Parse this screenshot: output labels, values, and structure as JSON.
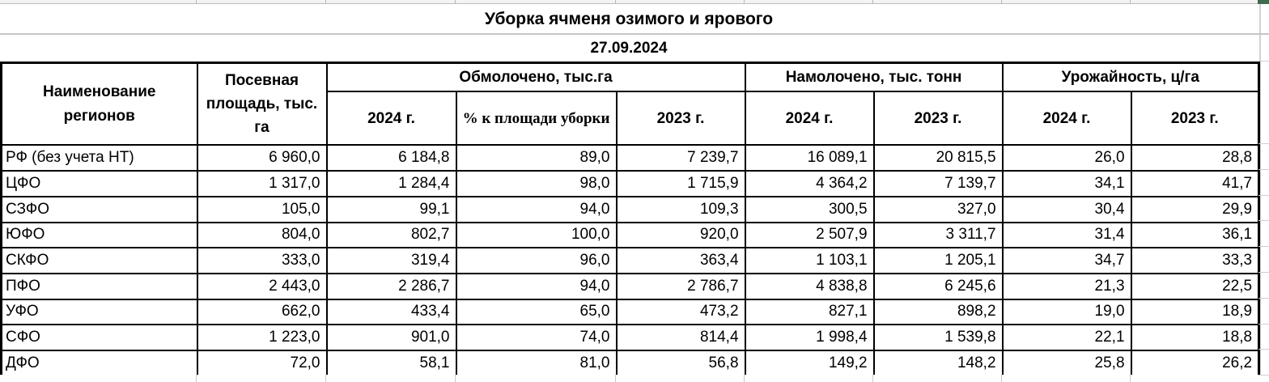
{
  "title": "Уборка ячменя озимого и ярового",
  "date": "27.09.2024",
  "table": {
    "headers": {
      "region": "Наименование регионов",
      "sown_area": "Посевная площадь, тыс. га",
      "threshed_group": "Обмолочено, тыс.га",
      "threshed_2024": "2024 г.",
      "threshed_pct": "% к площади уборки",
      "threshed_2023": "2023 г.",
      "harvested_group": "Намолочено, тыс. тонн",
      "harvested_2024": "2024 г.",
      "harvested_2023": "2023 г.",
      "yield_group": "Урожайность, ц/га",
      "yield_2024": "2024 г.",
      "yield_2023": "2023 г."
    },
    "rows": [
      {
        "region": "РФ (без учета НТ)",
        "values": [
          "6 960,0",
          "6 184,8",
          "89,0",
          "7 239,7",
          "16 089,1",
          "20 815,5",
          "26,0",
          "28,8"
        ]
      },
      {
        "region": "ЦФО",
        "values": [
          "1 317,0",
          "1 284,4",
          "98,0",
          "1 715,9",
          "4 364,2",
          "7 139,7",
          "34,1",
          "41,7"
        ]
      },
      {
        "region": "СЗФО",
        "values": [
          "105,0",
          "99,1",
          "94,0",
          "109,3",
          "300,5",
          "327,0",
          "30,4",
          "29,9"
        ]
      },
      {
        "region": "ЮФО",
        "values": [
          "804,0",
          "802,7",
          "100,0",
          "920,0",
          "2 507,9",
          "3 311,7",
          "31,4",
          "36,1"
        ]
      },
      {
        "region": "СКФО",
        "values": [
          "333,0",
          "319,4",
          "96,0",
          "363,4",
          "1 103,1",
          "1 205,1",
          "34,7",
          "33,3"
        ]
      },
      {
        "region": "ПФО",
        "values": [
          "2 443,0",
          "2 286,7",
          "94,0",
          "2 786,7",
          "4 838,8",
          "6 245,6",
          "21,3",
          "22,5"
        ]
      },
      {
        "region": "УФО",
        "values": [
          "662,0",
          "433,4",
          "65,0",
          "473,2",
          "827,1",
          "898,2",
          "19,0",
          "18,9"
        ]
      },
      {
        "region": "СФО",
        "values": [
          "1 223,0",
          "901,0",
          "74,0",
          "814,4",
          "1 998,4",
          "1 539,8",
          "22,1",
          "18,8"
        ]
      },
      {
        "region": "ДФО",
        "values": [
          "72,0",
          "58,1",
          "81,0",
          "56,8",
          "149,2",
          "148,2",
          "25,8",
          "26,2"
        ]
      }
    ]
  },
  "colors": {
    "selection_green": "#3f6b4e",
    "grid_gray": "#c6c6c6",
    "border_black": "#000000"
  }
}
